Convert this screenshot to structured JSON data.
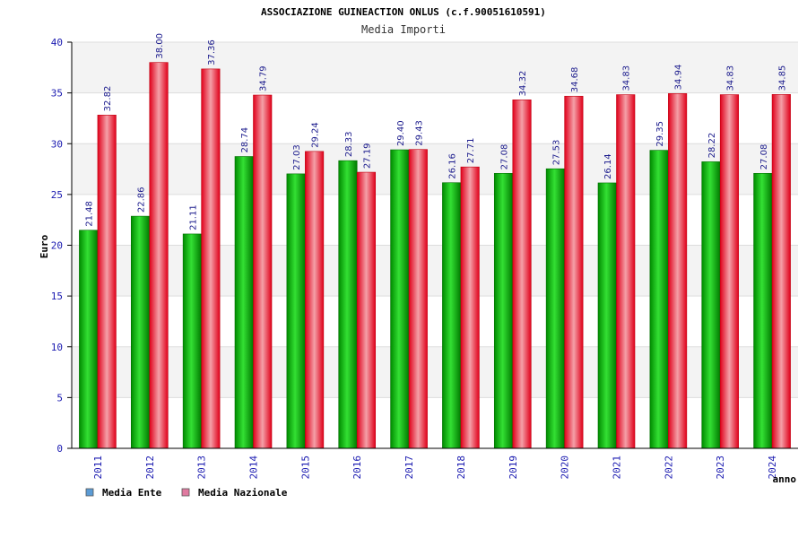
{
  "chart_data": {
    "type": "bar",
    "title": "ASSOCIAZIONE GUINEACTION ONLUS (c.f.90051610591)",
    "subtitle": "Media Importi",
    "xlabel": "anno",
    "ylabel": "Euro",
    "ylim": [
      0,
      40
    ],
    "yticks": [
      "0",
      "5",
      "10",
      "15",
      "20",
      "25",
      "30",
      "35",
      "40"
    ],
    "categories": [
      "2011",
      "2012",
      "2013",
      "2014",
      "2015",
      "2016",
      "2017",
      "2018",
      "2019",
      "2020",
      "2021",
      "2022",
      "2023",
      "2024"
    ],
    "series": [
      {
        "name": "Media Ente",
        "values": [
          21.48,
          22.86,
          21.11,
          28.74,
          27.03,
          28.33,
          29.4,
          26.16,
          27.08,
          27.53,
          26.14,
          29.35,
          28.22,
          27.08
        ],
        "labels": [
          "21.48",
          "22.86",
          "21.11",
          "28.74",
          "27.03",
          "28.33",
          "29.40",
          "26.16",
          "27.08",
          "27.53",
          "26.14",
          "29.35",
          "28.22",
          "27.08"
        ],
        "bar_color": "#1fbf1f",
        "legend_color": "#5b9bd5"
      },
      {
        "name": "Media Nazionale",
        "values": [
          32.82,
          38.0,
          37.36,
          34.79,
          29.24,
          27.19,
          29.43,
          27.71,
          34.32,
          34.68,
          34.83,
          34.94,
          34.83,
          34.85
        ],
        "labels": [
          "32.82",
          "38.00",
          "37.36",
          "34.79",
          "29.24",
          "27.19",
          "29.43",
          "27.71",
          "34.32",
          "34.68",
          "34.83",
          "34.94",
          "34.83",
          "34.85"
        ],
        "bar_color": "#e8242c",
        "legend_color": "#e07aa0"
      }
    ],
    "grid": true,
    "legend_position": "bottom-left"
  }
}
